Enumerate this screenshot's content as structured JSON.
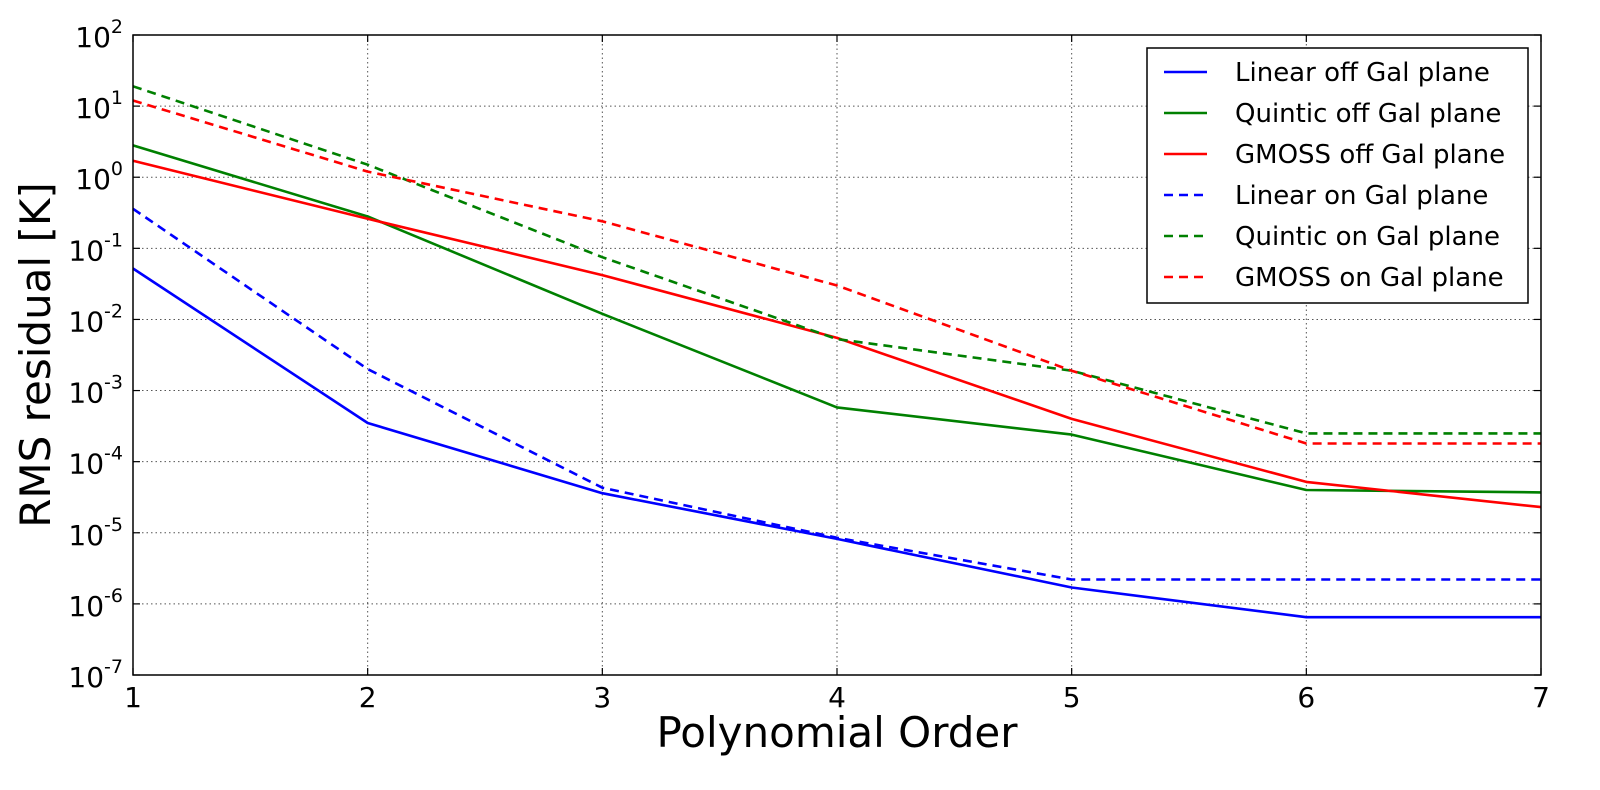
{
  "chart_data": {
    "type": "line",
    "title": "",
    "xlabel": "Polynomial Order",
    "ylabel": "RMS residual [K]",
    "xlim": [
      1,
      7
    ],
    "ylim": [
      1e-07,
      100
    ],
    "yscale": "log",
    "grid": true,
    "legend_position": "top-right",
    "x": [
      1,
      2,
      3,
      4,
      5,
      6,
      7
    ],
    "x_tick_labels": [
      "1",
      "2",
      "3",
      "4",
      "5",
      "6",
      "7"
    ],
    "y_ticks": [
      {
        "base": "10",
        "exp": "2",
        "value": 100
      },
      {
        "base": "10",
        "exp": "1",
        "value": 10
      },
      {
        "base": "10",
        "exp": "0",
        "value": 1
      },
      {
        "base": "10",
        "exp": "-1",
        "value": 0.1
      },
      {
        "base": "10",
        "exp": "-2",
        "value": 0.01
      },
      {
        "base": "10",
        "exp": "-3",
        "value": 0.001
      },
      {
        "base": "10",
        "exp": "-4",
        "value": 0.0001
      },
      {
        "base": "10",
        "exp": "-5",
        "value": 1e-05
      },
      {
        "base": "10",
        "exp": "-6",
        "value": 1e-06
      },
      {
        "base": "10",
        "exp": "-7",
        "value": 1e-07
      }
    ],
    "series": [
      {
        "name": "Linear off Gal plane",
        "color": "#0000ff",
        "dashed": false,
        "values": [
          0.052,
          0.00035,
          3.6e-05,
          8.2e-06,
          1.7e-06,
          6.5e-07,
          6.5e-07
        ]
      },
      {
        "name": "Quintic off Gal plane",
        "color": "#008000",
        "dashed": false,
        "values": [
          2.8,
          0.28,
          0.012,
          0.00058,
          0.00024,
          4e-05,
          3.7e-05
        ]
      },
      {
        "name": "GMOSS off Gal plane",
        "color": "#ff0000",
        "dashed": false,
        "values": [
          1.7,
          0.26,
          0.042,
          0.0055,
          0.0004,
          5.2e-05,
          2.3e-05
        ]
      },
      {
        "name": "Linear on Gal plane",
        "color": "#0000ff",
        "dashed": true,
        "values": [
          0.36,
          0.002,
          4.3e-05,
          8.5e-06,
          2.2e-06,
          2.2e-06,
          2.2e-06
        ]
      },
      {
        "name": "Quintic on Gal plane",
        "color": "#008000",
        "dashed": true,
        "values": [
          19,
          1.5,
          0.075,
          0.0053,
          0.0019,
          0.00025,
          0.00025
        ]
      },
      {
        "name": "GMOSS on Gal plane",
        "color": "#ff0000",
        "dashed": true,
        "values": [
          12,
          1.2,
          0.24,
          0.03,
          0.0019,
          0.00018,
          0.00018
        ]
      }
    ]
  }
}
